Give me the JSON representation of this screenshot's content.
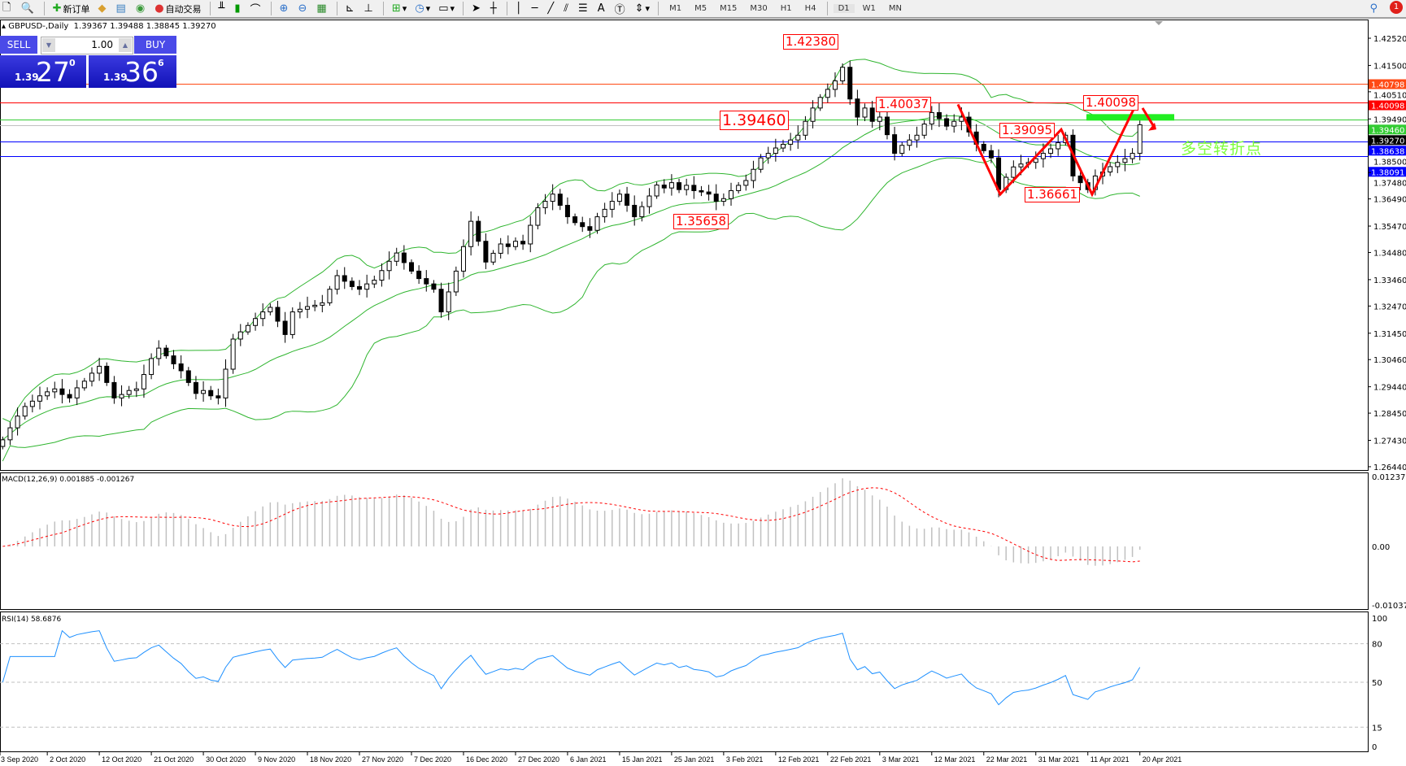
{
  "toolbar": {
    "new_order": "新订单",
    "auto_trading": "自动交易",
    "timeframes": [
      "M1",
      "M5",
      "M15",
      "M30",
      "H1",
      "H4",
      "D1",
      "W1",
      "MN"
    ],
    "active_timeframe": "D1",
    "notification_count": "1"
  },
  "chart_header": {
    "symbol": "GBPUSD-,Daily",
    "ohlc": "1.39367 1.39488 1.38845 1.39270"
  },
  "trade_panel": {
    "sell_label": "SELL",
    "buy_label": "BUY",
    "lot": "1.00",
    "sell_prefix": "1.39",
    "sell_big": "27",
    "sell_sup": "0",
    "buy_prefix": "1.39",
    "buy_big": "36",
    "buy_sup": "6"
  },
  "annotations": {
    "high": "1.42380",
    "level": "1.39460",
    "peak1": "1.40037",
    "mid": "1.39095",
    "trough": "1.36661",
    "peak2": "1.40098",
    "low": "1.35658",
    "turning_point": "多空转折点"
  },
  "colors": {
    "bull": "#ffffff",
    "bear": "#000000",
    "bands": "#2fb52f",
    "line_orange": "#ff4a14",
    "line_red": "#ff0000",
    "line_green": "#33cc33",
    "line_blue": "#0000ff",
    "bid_line": "#c0c0c0",
    "macd_hist": "#c0c0c0",
    "macd_signal": "#ff0000",
    "rsi": "#1e90ff",
    "zigzag": "#ff0000",
    "zone": "#22ee22"
  },
  "chart_data": [
    {
      "type": "candlestick",
      "symbol": "GBPUSD-",
      "timeframe": "Daily",
      "ylim": [
        1.2644,
        1.4252
      ],
      "y_ticks": [
        "1.42520",
        "1.41500",
        "1.40510",
        "1.39490",
        "1.38500",
        "1.37480",
        "1.36490",
        "1.35470",
        "1.34480",
        "1.33460",
        "1.32470",
        "1.31450",
        "1.30460",
        "1.29440",
        "1.28450",
        "1.27430",
        "1.26440"
      ],
      "x_tick_labels": [
        "3 Sep 2020",
        "2 Oct 2020",
        "12 Oct 2020",
        "21 Oct 2020",
        "30 Oct 2020",
        "9 Nov 2020",
        "18 Nov 2020",
        "27 Nov 2020",
        "7 Dec 2020",
        "16 Dec 2020",
        "27 Dec 2020",
        "6 Jan 2021",
        "15 Jan 2021",
        "25 Jan 2021",
        "3 Feb 2021",
        "12 Feb 2021",
        "22 Feb 2021",
        "3 Mar 2021",
        "12 Mar 2021",
        "22 Mar 2021",
        "31 Mar 2021",
        "11 Apr 2021",
        "20 Apr 2021"
      ],
      "closes": [
        1.2745,
        1.279,
        1.2834,
        1.287,
        1.289,
        1.291,
        1.2925,
        1.2936,
        1.2915,
        1.2902,
        1.294,
        1.2965,
        1.2995,
        1.3021,
        1.296,
        1.2902,
        1.2915,
        1.293,
        1.2936,
        1.299,
        1.305,
        1.3089,
        1.306,
        1.303,
        1.3004,
        1.296,
        1.2919,
        1.293,
        1.291,
        1.2902,
        1.301,
        1.3123,
        1.315,
        1.3174,
        1.32,
        1.3225,
        1.3242,
        1.319,
        1.314,
        1.3225,
        1.3235,
        1.3245,
        1.325,
        1.3259,
        1.331,
        1.3361,
        1.334,
        1.332,
        1.331,
        1.333,
        1.3344,
        1.338,
        1.3415,
        1.3446,
        1.341,
        1.3378,
        1.335,
        1.333,
        1.331,
        1.3225,
        1.33,
        1.3378,
        1.347,
        1.3565,
        1.349,
        1.3412,
        1.3445,
        1.348,
        1.347,
        1.349,
        1.348,
        1.355,
        1.3616,
        1.364,
        1.3667,
        1.3625,
        1.3582,
        1.356,
        1.3545,
        1.3531,
        1.3582,
        1.361,
        1.364,
        1.3667,
        1.3625,
        1.3582,
        1.362,
        1.366,
        1.3701,
        1.369,
        1.371,
        1.3684,
        1.37,
        1.368,
        1.3675,
        1.3667,
        1.364,
        1.365,
        1.368,
        1.37,
        1.3718,
        1.376,
        1.3803,
        1.382,
        1.384,
        1.3854,
        1.387,
        1.3888,
        1.394,
        1.399,
        1.403,
        1.406,
        1.4092,
        1.4143,
        1.4024,
        1.3956,
        1.399,
        1.394,
        1.3956,
        1.389,
        1.382,
        1.385,
        1.387,
        1.3888,
        1.393,
        1.3973,
        1.395,
        1.3922,
        1.394,
        1.3956,
        1.39,
        1.3854,
        1.383,
        1.3803,
        1.3684,
        1.373,
        1.3769,
        1.378,
        1.3786,
        1.38,
        1.382,
        1.3837,
        1.386,
        1.3888,
        1.3735,
        1.371,
        1.3684,
        1.3735,
        1.375,
        1.377,
        1.3786,
        1.38,
        1.382,
        1.3927
      ],
      "indicators": [
        "Bollinger Bands"
      ],
      "horizontal_lines": [
        {
          "price": "1.40798",
          "color": "line_orange"
        },
        {
          "price": "1.40098",
          "color": "line_red"
        },
        {
          "price": "1.39460",
          "color": "line_green"
        },
        {
          "price": "1.39270",
          "color": "bid_line",
          "label_bg": "#000000"
        },
        {
          "price": "1.38638",
          "color": "line_blue"
        },
        {
          "price": "1.38091",
          "color": "line_blue"
        }
      ],
      "zigzag_prices": [
        1.40037,
        1.36661,
        1.39095,
        1.36661,
        1.40098
      ]
    },
    {
      "type": "bar",
      "label": "MACD(12,26,9) 0.001885 -0.001267",
      "ylim": [
        -0.010374,
        0.012372
      ],
      "y_ticks": [
        "0.012372",
        "0.00",
        "-0.010374"
      ]
    },
    {
      "type": "line",
      "label": "RSI(14) 58.6876",
      "ylim": [
        0,
        100
      ],
      "levels": [
        80,
        50,
        15
      ],
      "y_ticks": [
        "100",
        "80",
        "50",
        "15",
        "0"
      ]
    }
  ]
}
